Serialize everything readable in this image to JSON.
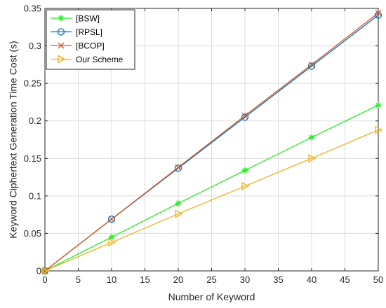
{
  "chart_data": {
    "type": "line",
    "title": "",
    "xlabel": "Number of Keyword",
    "ylabel": "Keyword Ciphertext Generation Time Cost (s)",
    "xlim": [
      0,
      50
    ],
    "ylim": [
      0,
      0.35
    ],
    "xticks": [
      0,
      5,
      10,
      15,
      20,
      25,
      30,
      35,
      40,
      45,
      50
    ],
    "yticks": [
      0,
      0.05,
      0.1,
      0.15,
      0.2,
      0.25,
      0.3,
      0.35
    ],
    "xtick_labels": [
      "0",
      "5",
      "10",
      "15",
      "20",
      "25",
      "30",
      "35",
      "40",
      "45",
      "50"
    ],
    "ytick_labels": [
      "0",
      "0.05",
      "0.1",
      "0.15",
      "0.2",
      "0.25",
      "0.3",
      "0.35"
    ],
    "grid": true,
    "legend_position": "top-left",
    "x": [
      0,
      10,
      20,
      30,
      40,
      50
    ],
    "series": [
      {
        "name": "[BSW]",
        "color": "#22ee22",
        "marker": "asterisk",
        "values": [
          0,
          0.045,
          0.09,
          0.134,
          0.178,
          0.221
        ]
      },
      {
        "name": "[RPSL]",
        "color": "#0072bd",
        "marker": "circle",
        "values": [
          0,
          0.069,
          0.137,
          0.205,
          0.273,
          0.341
        ]
      },
      {
        "name": "[BCOP]",
        "color": "#d95319",
        "marker": "x",
        "values": [
          0,
          0.069,
          0.138,
          0.207,
          0.275,
          0.344
        ]
      },
      {
        "name": "Our Scheme",
        "color": "#edb120",
        "marker": "triangle-right",
        "values": [
          0,
          0.038,
          0.076,
          0.113,
          0.15,
          0.188
        ]
      }
    ]
  }
}
